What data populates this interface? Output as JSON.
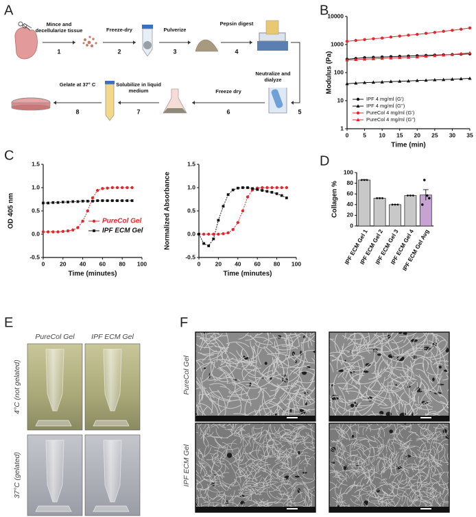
{
  "panel_labels": [
    "A",
    "B",
    "C",
    "D",
    "E",
    "F"
  ],
  "workflow": {
    "steps": [
      {
        "label": "Mince and decellularize tissue",
        "number": 1
      },
      {
        "label": "Freeze-dry",
        "number": 2
      },
      {
        "label": "Pulverize",
        "number": 3
      },
      {
        "label": "Pepsin digest",
        "number": 4
      },
      {
        "label": "Neutralize and dialyze",
        "number": 5
      },
      {
        "label": "Freeze dry",
        "number": 6
      },
      {
        "label": "Solubilize in liquid medium",
        "number": 7
      },
      {
        "label": "Gelate at 37° C",
        "number": 8
      }
    ]
  },
  "chart_data": [
    {
      "type": "line",
      "ylabel": "Modulus (Pa)",
      "xlabel": "Time (min)",
      "yscale": "log",
      "legend": "lower left",
      "x": [
        0,
        2.5,
        5,
        7.5,
        10,
        12.5,
        15,
        17.5,
        20,
        22.5,
        25,
        27.5,
        30,
        32.5,
        35
      ],
      "xlim": [
        0,
        35
      ],
      "xticks": [
        0,
        5,
        10,
        15,
        20,
        25,
        30,
        35
      ],
      "ylim": [
        1,
        10000
      ],
      "yticks": [
        1,
        10,
        100,
        1000,
        10000
      ],
      "series": [
        {
          "name": "IPF 4 mg/ml (G')",
          "color": "#111111",
          "marker": "circle",
          "values": [
            300,
            320,
            340,
            350,
            360,
            370,
            380,
            390,
            400,
            410,
            420,
            430,
            440,
            450,
            460
          ]
        },
        {
          "name": "IPF 4 mg/ml (G'')",
          "color": "#111111",
          "marker": "triangle",
          "values": [
            40,
            42,
            44,
            45,
            46,
            48,
            49,
            50,
            52,
            53,
            55,
            56,
            58,
            60,
            62
          ]
        },
        {
          "name": "PureCol 4 mg/ml (G')",
          "color": "#e3262b",
          "marker": "circle",
          "values": [
            1300,
            1400,
            1500,
            1600,
            1700,
            1850,
            2000,
            2150,
            2300,
            2500,
            2700,
            2950,
            3200,
            3500,
            3900
          ]
        },
        {
          "name": "PureCol 4 mg/ml (G'')",
          "color": "#e3262b",
          "marker": "triangle",
          "values": [
            280,
            290,
            300,
            310,
            320,
            330,
            340,
            350,
            360,
            380,
            400,
            420,
            440,
            470,
            500
          ]
        }
      ]
    },
    {
      "type": "line",
      "ylabel": "OD 405 nm",
      "xlabel": "Time (minutes)",
      "legend": "center right",
      "x": [
        0,
        5,
        10,
        15,
        20,
        25,
        30,
        35,
        40,
        45,
        50,
        55,
        60,
        65,
        70,
        75,
        80,
        85,
        90
      ],
      "xlim": [
        0,
        100
      ],
      "xticks": [
        0,
        20,
        40,
        60,
        80,
        100
      ],
      "ylim": [
        -0.5,
        1.5
      ],
      "yticks": [
        -0.5,
        {
          "value": 0,
          "label": "0.0"
        },
        0.5,
        {
          "value": 1,
          "label": "1.0"
        },
        1.5
      ],
      "series": [
        {
          "name": "PureCol Gel",
          "color": "#e3262b",
          "marker": "circle",
          "values": [
            0.05,
            0.05,
            0.05,
            0.05,
            0.06,
            0.07,
            0.09,
            0.14,
            0.28,
            0.5,
            0.78,
            0.94,
            0.98,
            0.99,
            1,
            1,
            1,
            1,
            1
          ]
        },
        {
          "name": "IPF ECM Gel",
          "color": "#111111",
          "marker": "square",
          "values": [
            0.67,
            0.67,
            0.68,
            0.68,
            0.69,
            0.69,
            0.7,
            0.7,
            0.71,
            0.71,
            0.71,
            0.72,
            0.72,
            0.72,
            0.72,
            0.72,
            0.72,
            0.72,
            0.72
          ]
        }
      ]
    },
    {
      "type": "line",
      "ylabel": "Normalized Absorbance",
      "xlabel": "Time (minutes)",
      "x": [
        0,
        5,
        10,
        15,
        20,
        25,
        30,
        35,
        40,
        45,
        50,
        55,
        60,
        65,
        70,
        75,
        80,
        85,
        90
      ],
      "xlim": [
        0,
        100
      ],
      "xticks": [
        0,
        20,
        40,
        60,
        80,
        100
      ],
      "ylim": [
        -0.5,
        1.5
      ],
      "yticks": [
        -0.5,
        {
          "value": 0,
          "label": "0.0"
        },
        0.5,
        {
          "value": 1,
          "label": "1.0"
        },
        1.5
      ],
      "series": [
        {
          "color": "#e3262b",
          "marker": "circle",
          "values": [
            0,
            0,
            0,
            0,
            0,
            0.01,
            0.03,
            0.1,
            0.25,
            0.5,
            0.8,
            0.95,
            0.99,
            1,
            1,
            1,
            1,
            1,
            1
          ]
        },
        {
          "color": "#111111",
          "marker": "square",
          "values": [
            0,
            -0.2,
            -0.25,
            -0.1,
            0.3,
            0.6,
            0.85,
            0.95,
            0.99,
            1,
            1,
            0.98,
            0.96,
            0.94,
            0.92,
            0.9,
            0.87,
            0.83,
            0.78
          ]
        }
      ]
    },
    {
      "type": "bar",
      "ylabel": "Collagen %",
      "categories": [
        "IPF ECM Gel 1",
        "IPF ECM Gel 2",
        "IPF ECM Gel 3",
        "IPF ECM Gel 4",
        "IPF ECM Gel Avg"
      ],
      "values": [
        86,
        52,
        40,
        57,
        58
      ],
      "errors": [
        1,
        0.5,
        0.5,
        0.5,
        10
      ],
      "colors": [
        "#c8c8c8",
        "#c8c8c8",
        "#c8c8c8",
        "#c8c8c8",
        "#c7a3d4"
      ],
      "ylim": [
        0,
        100
      ],
      "yticks": [
        0,
        20,
        40,
        60,
        80,
        100
      ]
    }
  ],
  "photos": {
    "columns": [
      "PureCol Gel",
      "IPF ECM Gel"
    ],
    "rows": [
      "4°C (not gelated)",
      "37°C (gelated)"
    ]
  },
  "sem": {
    "rows": [
      "PureCol Gel",
      "IPF ECM Gel"
    ]
  }
}
